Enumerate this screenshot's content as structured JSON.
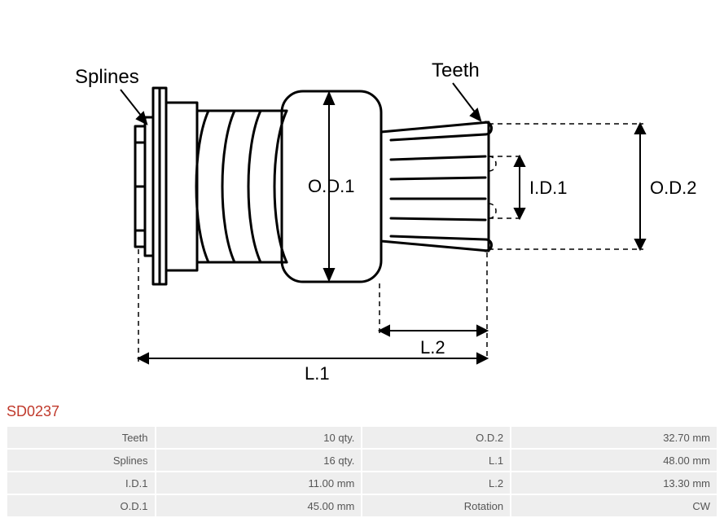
{
  "part_code": "SD0237",
  "diagram": {
    "labels": {
      "splines": "Splines",
      "teeth": "Teeth",
      "od1": "O.D.1",
      "od2": "O.D.2",
      "id1": "I.D.1",
      "l1": "L.1",
      "l2": "L.2"
    },
    "stroke_color": "#000000",
    "stroke_width_main": 3,
    "stroke_width_dim": 1.5,
    "dash": "6,5",
    "font_size_label": 24,
    "font_size_dim": 22
  },
  "specs": [
    {
      "label1": "Teeth",
      "value1": "10 qty.",
      "label2": "O.D.2",
      "value2": "32.70 mm"
    },
    {
      "label1": "Splines",
      "value1": "16 qty.",
      "label2": "L.1",
      "value2": "48.00 mm"
    },
    {
      "label1": "I.D.1",
      "value1": "11.00 mm",
      "label2": "L.2",
      "value2": "13.30 mm"
    },
    {
      "label1": "O.D.1",
      "value1": "45.00 mm",
      "label2": "Rotation",
      "value2": "CW"
    }
  ],
  "colors": {
    "accent": "#c0392b",
    "row_bg": "#eeeeee",
    "text": "#555555",
    "background": "#ffffff"
  }
}
